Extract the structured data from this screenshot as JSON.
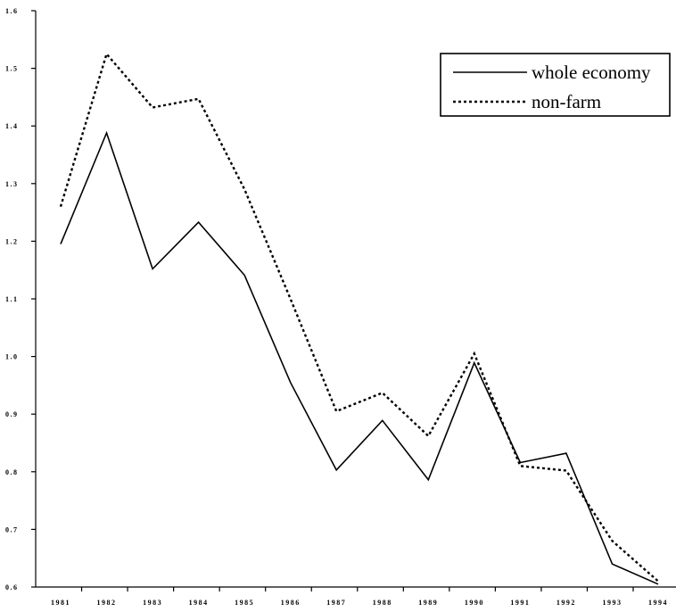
{
  "chart_data": {
    "type": "line",
    "x": [
      "1981",
      "1982",
      "1983",
      "1984",
      "1985",
      "1986",
      "1987",
      "1988",
      "1989",
      "1990",
      "1991",
      "1992",
      "1993",
      "1994"
    ],
    "ylim": [
      0.6,
      1.6
    ],
    "yticks": [
      "0.6",
      "0.7",
      "0.8",
      "0.9",
      "1.0",
      "1.1",
      "1.2",
      "1.3",
      "1.4",
      "1.5",
      "1.6"
    ],
    "grid": false,
    "legend_position": "top-right",
    "series": [
      {
        "name": "whole economy",
        "style": "solid",
        "values": [
          1.195,
          1.388,
          1.152,
          1.233,
          1.141,
          0.955,
          0.803,
          0.889,
          0.786,
          0.989,
          0.816,
          0.832,
          0.64,
          0.605
        ]
      },
      {
        "name": "non-farm",
        "style": "dashed",
        "values": [
          1.26,
          1.525,
          1.432,
          1.447,
          1.29,
          1.1,
          0.905,
          0.937,
          0.862,
          1.005,
          0.81,
          0.802,
          0.68,
          0.61
        ]
      }
    ]
  }
}
